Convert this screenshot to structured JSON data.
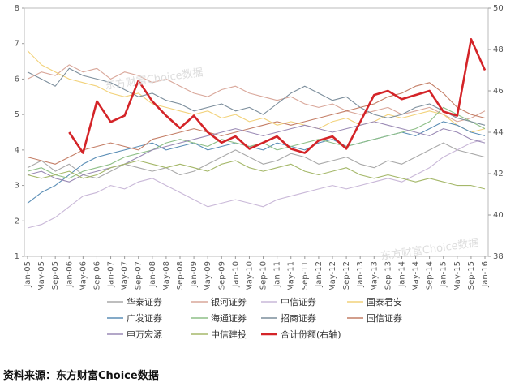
{
  "chart_data": {
    "type": "line",
    "x_ticks": [
      "Jan-05",
      "May-05",
      "Sep-05",
      "Jan-06",
      "May-06",
      "Sep-06",
      "Jan-07",
      "May-07",
      "Sep-07",
      "Jan-08",
      "May-08",
      "Sep-08",
      "Jan-09",
      "May-09",
      "Sep-09",
      "Jan-10",
      "May-10",
      "Sep-10",
      "Jan-11",
      "May-11",
      "Sep-11",
      "Jan-12",
      "May-12",
      "Sep-12",
      "Jan-13",
      "May-13",
      "Sep-13",
      "Jan-14",
      "May-14",
      "Sep-14",
      "Jan-15",
      "May-15",
      "Sep-15",
      "Jan-16"
    ],
    "y_left": {
      "min": 1,
      "max": 8,
      "ticks": [
        1,
        2,
        3,
        4,
        5,
        6,
        7,
        8
      ]
    },
    "y_right": {
      "min": 38,
      "max": 50,
      "ticks": [
        38,
        40,
        42,
        44,
        46,
        48,
        50
      ]
    },
    "grid": false,
    "legend_position": "bottom",
    "watermark": "东方财富Choice数据",
    "series": [
      {
        "name": "华泰证券",
        "color": "#a9a9a9",
        "axis": "left",
        "values": [
          3.5,
          3.7,
          3.4,
          3.6,
          3.3,
          3.2,
          3.4,
          3.6,
          3.5,
          3.4,
          3.5,
          3.3,
          3.4,
          3.6,
          3.8,
          4.0,
          3.8,
          3.6,
          3.7,
          3.9,
          3.8,
          3.6,
          3.7,
          3.8,
          3.6,
          3.5,
          3.7,
          3.6,
          3.8,
          4.0,
          4.2,
          4.0,
          3.9,
          3.8
        ]
      },
      {
        "name": "银河证券",
        "color": "#d9a79a",
        "axis": "left",
        "values": [
          6.0,
          6.2,
          6.1,
          6.4,
          6.2,
          6.3,
          6.0,
          6.2,
          6.1,
          5.9,
          6.0,
          5.8,
          5.6,
          5.5,
          5.7,
          5.8,
          5.6,
          5.5,
          5.4,
          5.5,
          5.3,
          5.2,
          5.3,
          5.1,
          5.0,
          5.1,
          5.2,
          5.0,
          5.1,
          5.2,
          5.0,
          4.8,
          4.9,
          5.1
        ]
      },
      {
        "name": "中信证券",
        "color": "#c9b8d8",
        "axis": "left",
        "values": [
          1.8,
          1.9,
          2.1,
          2.4,
          2.7,
          2.8,
          3.0,
          2.9,
          3.1,
          3.2,
          3.0,
          2.8,
          2.6,
          2.4,
          2.5,
          2.6,
          2.5,
          2.4,
          2.6,
          2.7,
          2.8,
          2.9,
          3.0,
          2.9,
          3.0,
          3.1,
          3.2,
          3.1,
          3.3,
          3.5,
          3.8,
          4.0,
          4.2,
          4.3
        ]
      },
      {
        "name": "国泰君安",
        "color": "#f2d27a",
        "axis": "left",
        "values": [
          6.8,
          6.4,
          6.2,
          6.0,
          5.9,
          5.8,
          5.6,
          5.5,
          5.6,
          5.3,
          5.2,
          5.1,
          5.0,
          5.1,
          4.9,
          5.0,
          4.8,
          4.9,
          4.7,
          4.8,
          4.7,
          4.6,
          4.8,
          4.9,
          4.7,
          4.8,
          5.0,
          4.9,
          5.0,
          5.1,
          5.0,
          4.7,
          4.5,
          4.6
        ]
      },
      {
        "name": "广发证券",
        "color": "#5b8eb6",
        "axis": "left",
        "values": [
          2.5,
          2.8,
          3.0,
          3.3,
          3.6,
          3.8,
          3.9,
          4.0,
          4.1,
          4.2,
          4.0,
          4.1,
          4.2,
          4.0,
          4.1,
          4.2,
          4.1,
          4.0,
          4.2,
          4.1,
          4.0,
          4.2,
          4.3,
          4.1,
          4.2,
          4.3,
          4.4,
          4.5,
          4.4,
          4.6,
          4.8,
          4.7,
          4.5,
          4.4
        ]
      },
      {
        "name": "海通证券",
        "color": "#8ebf87",
        "axis": "left",
        "values": [
          3.4,
          3.5,
          3.3,
          3.2,
          3.4,
          3.5,
          3.6,
          3.8,
          3.9,
          4.0,
          4.2,
          4.3,
          4.2,
          4.1,
          4.3,
          4.2,
          4.1,
          4.2,
          4.0,
          4.1,
          4.2,
          4.3,
          4.2,
          4.1,
          4.2,
          4.3,
          4.4,
          4.5,
          4.6,
          4.8,
          5.2,
          5.0,
          4.8,
          4.6
        ]
      },
      {
        "name": "招商证券",
        "color": "#7c8e9c",
        "axis": "left",
        "values": [
          6.2,
          6.0,
          5.8,
          6.3,
          6.1,
          6.0,
          5.9,
          5.7,
          5.5,
          5.6,
          5.4,
          5.3,
          5.1,
          5.2,
          5.3,
          5.1,
          5.2,
          5.0,
          5.3,
          5.6,
          5.8,
          5.6,
          5.4,
          5.5,
          5.2,
          5.0,
          4.9,
          5.0,
          5.2,
          5.3,
          5.1,
          4.9,
          4.8,
          4.7
        ]
      },
      {
        "name": "国信证券",
        "color": "#c47e66",
        "axis": "left",
        "values": [
          3.8,
          3.7,
          3.6,
          3.8,
          4.0,
          4.1,
          4.2,
          4.1,
          4.0,
          4.3,
          4.4,
          4.5,
          4.6,
          4.5,
          4.4,
          4.5,
          4.6,
          4.7,
          4.8,
          4.7,
          4.8,
          4.9,
          5.0,
          5.1,
          5.2,
          5.3,
          5.5,
          5.6,
          5.8,
          5.9,
          5.6,
          5.2,
          5.0,
          4.9
        ]
      },
      {
        "name": "申万宏源",
        "color": "#9a8ab5",
        "axis": "left",
        "values": [
          3.3,
          3.4,
          3.2,
          3.1,
          3.3,
          3.4,
          3.5,
          3.6,
          3.8,
          4.0,
          4.1,
          4.2,
          4.3,
          4.4,
          4.5,
          4.6,
          4.5,
          4.4,
          4.5,
          4.6,
          4.7,
          4.6,
          4.5,
          4.6,
          4.7,
          4.8,
          4.7,
          4.6,
          4.5,
          4.4,
          4.6,
          4.5,
          4.3,
          4.2
        ]
      },
      {
        "name": "中信建投",
        "color": "#a5b86a",
        "axis": "left",
        "values": [
          3.3,
          3.2,
          3.3,
          3.4,
          3.2,
          3.3,
          3.5,
          3.6,
          3.7,
          3.6,
          3.5,
          3.6,
          3.5,
          3.4,
          3.6,
          3.7,
          3.5,
          3.4,
          3.5,
          3.6,
          3.4,
          3.3,
          3.4,
          3.5,
          3.3,
          3.2,
          3.3,
          3.2,
          3.1,
          3.2,
          3.1,
          3.0,
          3.0,
          2.9
        ]
      },
      {
        "name": "合计份额(右轴)",
        "color": "#d42428",
        "axis": "right",
        "values": [
          null,
          null,
          null,
          44.0,
          43.0,
          45.5,
          44.5,
          44.8,
          46.5,
          45.5,
          44.8,
          44.2,
          44.8,
          44.0,
          43.5,
          43.8,
          43.2,
          43.5,
          43.8,
          43.2,
          43.0,
          43.6,
          43.8,
          43.2,
          44.5,
          45.8,
          46.0,
          45.6,
          45.8,
          46.0,
          45.0,
          44.8,
          48.5,
          47.0
        ]
      }
    ],
    "x_labels_print": [
      "Jan-05",
      "May-05",
      "Sep-05",
      "Jan-06",
      "May-06",
      "Sep-06",
      "Jan-07",
      "May-07",
      "Sep-07",
      "Jan-08",
      "May-08",
      "Sep-08",
      "Jan-09",
      "May-09",
      "Sep-09",
      "Jan-10",
      "May-10",
      "Sep-10",
      "Jan-11",
      "May-11",
      "Sep-11",
      "Jan-12",
      "May-12",
      "Sep-12",
      "Jan-13",
      "May-13",
      "Sep-13",
      "Jan-14",
      "May-14",
      "Sep-14",
      "Jan-15",
      "May-15",
      "Sep-15",
      "Jan-16"
    ]
  },
  "source_text": "资料来源：东方财富Choice数据"
}
